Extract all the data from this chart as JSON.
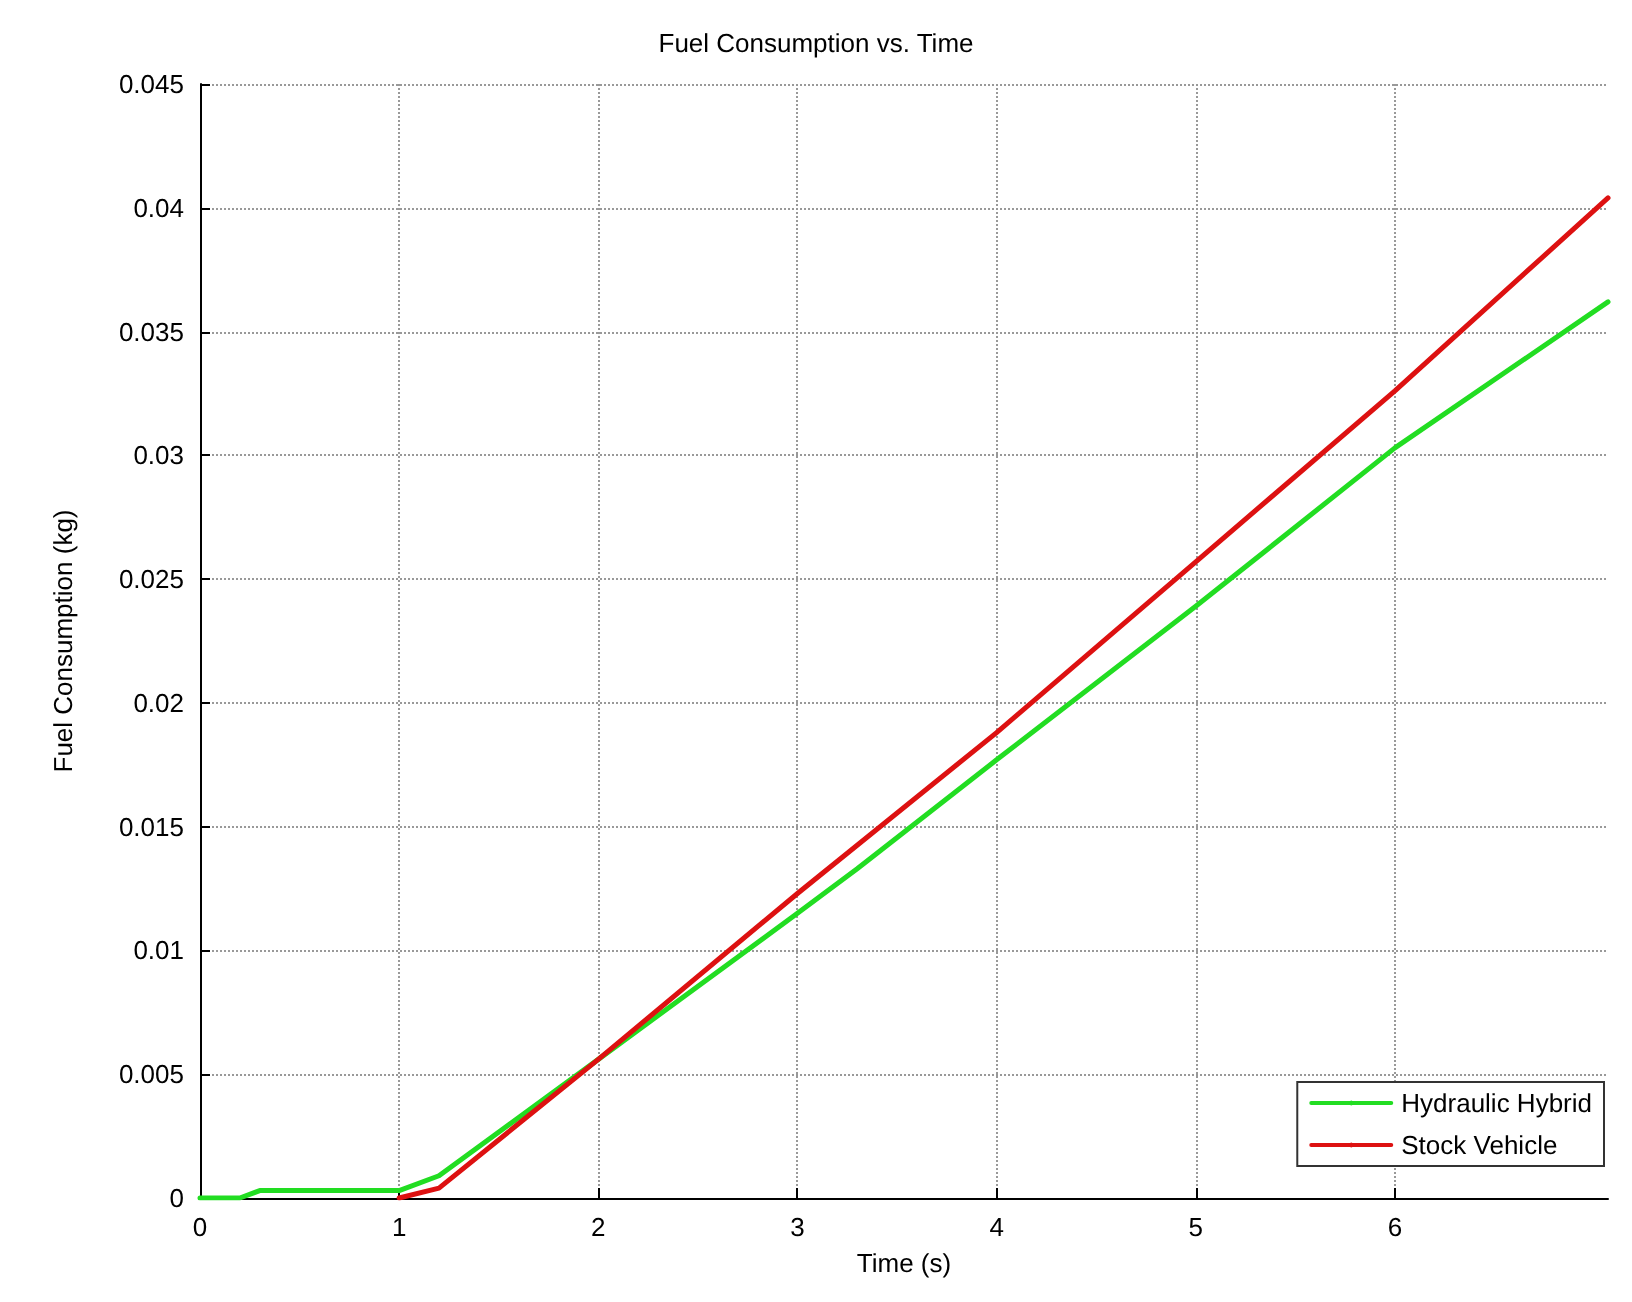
{
  "chart_data": {
    "type": "line",
    "title": "Fuel Consumption vs. Time",
    "xlabel": "Time (s)",
    "ylabel": "Fuel Consumption (kg)",
    "xlim": [
      0,
      7.07
    ],
    "xticks": [
      0,
      1,
      2,
      3,
      4,
      5,
      6
    ],
    "ylim": [
      0,
      0.045
    ],
    "yticks": [
      0,
      0.005,
      0.01,
      0.015,
      0.02,
      0.025,
      0.03,
      0.035,
      0.04,
      0.045
    ],
    "grid": true,
    "legend": "bottom right",
    "marker": "none",
    "line_style": "solid",
    "series": [
      {
        "name": "Hydraulic Hybrid",
        "color": "#22dd22",
        "x": [
          0,
          0.2,
          0.3,
          1.0,
          1.2,
          2,
          3,
          3.3,
          4,
          5,
          6,
          7.07
        ],
        "values": [
          0,
          0,
          0.0003,
          0.0003,
          0.0009,
          0.0056,
          0.0115,
          0.0133,
          0.0177,
          0.0239,
          0.0303,
          0.0362
        ]
      },
      {
        "name": "Stock Vehicle",
        "color": "#dd1111",
        "x": [
          1.0,
          1.2,
          2,
          3,
          4,
          5,
          6,
          7.07
        ],
        "values": [
          0,
          0.0004,
          0.0056,
          0.0123,
          0.0188,
          0.0257,
          0.0326,
          0.0404
        ]
      }
    ]
  }
}
